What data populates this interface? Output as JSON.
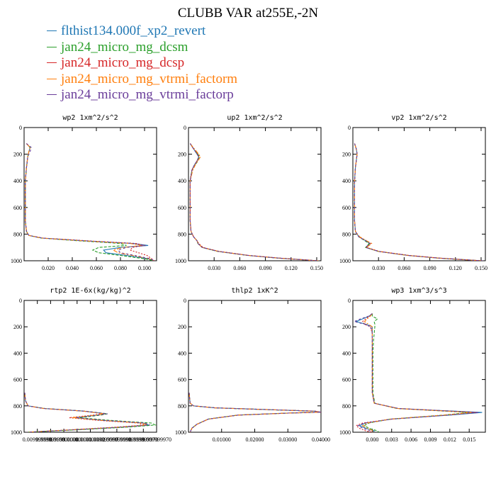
{
  "figure": {
    "title": "CLUBB VAR at255E,-2N",
    "legend": [
      {
        "label": "flthist134.000f_xp2_revert",
        "color": "#1f77b4"
      },
      {
        "label": "jan24_micro_mg_dcsm",
        "color": "#2ca02c"
      },
      {
        "label": "jan24_micro_mg_dcsp",
        "color": "#d62728"
      },
      {
        "label": "jan24_micro_mg_vtrmi_factorm",
        "color": "#ff7f0e"
      },
      {
        "label": "jan24_micro_mg_vtrmi_factorp",
        "color": "#6a3d9a"
      }
    ]
  },
  "chart_data": [
    {
      "type": "line",
      "title": "wp2  1xm^2/s^2",
      "ylim": [
        1000,
        0
      ],
      "yticks": [
        0,
        200,
        400,
        600,
        800,
        1000
      ],
      "xlim": [
        0,
        0.11
      ],
      "xticks": [
        0.02,
        0.04,
        0.06,
        0.08,
        0.1
      ],
      "xticklabels": [
        "0.020",
        "0.040",
        "0.060",
        "0.080",
        "0.100"
      ],
      "series_y": [
        120,
        150,
        180,
        220,
        300,
        400,
        500,
        600,
        700,
        780,
        810,
        830,
        850,
        870,
        885,
        900,
        920,
        940,
        960,
        985,
        1000
      ],
      "series": [
        {
          "name": "flthist134.000f_xp2_revert",
          "color": "#1f77b4",
          "values": [
            0.002,
            0.005,
            0.004,
            0.003,
            0.002,
            0.001,
            0.001,
            0.001,
            0.001,
            0.002,
            0.004,
            0.015,
            0.05,
            0.09,
            0.103,
            0.08,
            0.066,
            0.068,
            0.085,
            0.103,
            0.108
          ]
        },
        {
          "name": "jan24_micro_mg_dcsm",
          "color": "#2ca02c",
          "values": [
            0.002,
            0.005,
            0.004,
            0.003,
            0.002,
            0.001,
            0.001,
            0.001,
            0.001,
            0.002,
            0.004,
            0.014,
            0.045,
            0.08,
            0.085,
            0.062,
            0.057,
            0.062,
            0.08,
            0.1,
            0.108
          ]
        },
        {
          "name": "jan24_micro_mg_dcsp",
          "color": "#d62728",
          "values": [
            0.002,
            0.005,
            0.004,
            0.003,
            0.002,
            0.001,
            0.001,
            0.001,
            0.001,
            0.002,
            0.004,
            0.016,
            0.052,
            0.093,
            0.1,
            0.09,
            0.088,
            0.095,
            0.102,
            0.106,
            0.108
          ]
        },
        {
          "name": "jan24_micro_mg_vtrmi_factorm",
          "color": "#ff7f0e",
          "values": [
            0.002,
            0.005,
            0.004,
            0.003,
            0.002,
            0.001,
            0.001,
            0.001,
            0.001,
            0.002,
            0.004,
            0.015,
            0.049,
            0.088,
            0.098,
            0.082,
            0.074,
            0.078,
            0.09,
            0.104,
            0.108
          ]
        },
        {
          "name": "jan24_micro_mg_vtrmi_factorp",
          "color": "#6a3d9a",
          "values": [
            0.002,
            0.006,
            0.005,
            0.003,
            0.002,
            0.001,
            0.001,
            0.001,
            0.001,
            0.002,
            0.004,
            0.015,
            0.05,
            0.091,
            0.101,
            0.085,
            0.078,
            0.08,
            0.092,
            0.105,
            0.108
          ]
        }
      ]
    },
    {
      "type": "line",
      "title": "up2  1xm^2/s^2",
      "ylim": [
        1000,
        0
      ],
      "yticks": [
        0,
        200,
        400,
        600,
        800,
        1000
      ],
      "xlim": [
        0,
        0.155
      ],
      "xticks": [
        0.03,
        0.06,
        0.09,
        0.12,
        0.15
      ],
      "xticklabels": [
        "0.030",
        "0.060",
        "0.090",
        "0.120",
        "0.150"
      ],
      "series_y": [
        120,
        160,
        200,
        220,
        250,
        280,
        320,
        400,
        500,
        600,
        700,
        780,
        820,
        850,
        870,
        900,
        930,
        960,
        980,
        995,
        1000
      ],
      "series": [
        {
          "name": "flthist134.000f_xp2_revert",
          "color": "#1f77b4",
          "values": [
            0.002,
            0.006,
            0.01,
            0.012,
            0.01,
            0.007,
            0.004,
            0.002,
            0.002,
            0.002,
            0.002,
            0.003,
            0.006,
            0.01,
            0.011,
            0.016,
            0.035,
            0.07,
            0.105,
            0.14,
            0.152
          ]
        },
        {
          "name": "jan24_micro_mg_dcsm",
          "color": "#2ca02c",
          "values": [
            0.002,
            0.006,
            0.011,
            0.013,
            0.011,
            0.008,
            0.004,
            0.002,
            0.002,
            0.002,
            0.002,
            0.003,
            0.006,
            0.01,
            0.011,
            0.016,
            0.034,
            0.069,
            0.104,
            0.139,
            0.152
          ]
        },
        {
          "name": "jan24_micro_mg_dcsp",
          "color": "#d62728",
          "values": [
            0.002,
            0.006,
            0.011,
            0.012,
            0.01,
            0.007,
            0.004,
            0.002,
            0.002,
            0.002,
            0.002,
            0.003,
            0.006,
            0.01,
            0.012,
            0.017,
            0.036,
            0.071,
            0.106,
            0.141,
            0.152
          ]
        },
        {
          "name": "jan24_micro_mg_vtrmi_factorm",
          "color": "#ff7f0e",
          "values": [
            0.002,
            0.007,
            0.012,
            0.014,
            0.011,
            0.008,
            0.005,
            0.002,
            0.002,
            0.002,
            0.002,
            0.003,
            0.006,
            0.01,
            0.011,
            0.016,
            0.035,
            0.07,
            0.105,
            0.14,
            0.152
          ]
        },
        {
          "name": "jan24_micro_mg_vtrmi_factorp",
          "color": "#6a3d9a",
          "values": [
            0.002,
            0.006,
            0.01,
            0.012,
            0.01,
            0.007,
            0.004,
            0.002,
            0.002,
            0.002,
            0.002,
            0.003,
            0.006,
            0.01,
            0.011,
            0.016,
            0.035,
            0.07,
            0.105,
            0.14,
            0.152
          ]
        }
      ]
    },
    {
      "type": "line",
      "title": "vp2  1xm^2/s^2",
      "ylim": [
        1000,
        0
      ],
      "yticks": [
        0,
        200,
        400,
        600,
        800,
        1000
      ],
      "xlim": [
        0,
        0.155
      ],
      "xticks": [
        0.03,
        0.06,
        0.09,
        0.12,
        0.15
      ],
      "xticklabels": [
        "0.030",
        "0.060",
        "0.090",
        "0.120",
        "0.150"
      ],
      "series_y": [
        120,
        160,
        200,
        250,
        300,
        400,
        500,
        600,
        700,
        780,
        820,
        850,
        870,
        900,
        930,
        960,
        980,
        995,
        1000
      ],
      "series": [
        {
          "name": "flthist134.000f_xp2_revert",
          "color": "#1f77b4",
          "values": [
            0.002,
            0.004,
            0.005,
            0.004,
            0.003,
            0.002,
            0.002,
            0.002,
            0.002,
            0.003,
            0.007,
            0.015,
            0.02,
            0.015,
            0.03,
            0.065,
            0.1,
            0.138,
            0.152
          ]
        },
        {
          "name": "jan24_micro_mg_dcsm",
          "color": "#2ca02c",
          "values": [
            0.002,
            0.004,
            0.005,
            0.004,
            0.003,
            0.002,
            0.002,
            0.002,
            0.002,
            0.003,
            0.007,
            0.014,
            0.019,
            0.015,
            0.03,
            0.064,
            0.099,
            0.137,
            0.152
          ]
        },
        {
          "name": "jan24_micro_mg_dcsp",
          "color": "#d62728",
          "values": [
            0.002,
            0.004,
            0.005,
            0.004,
            0.003,
            0.002,
            0.002,
            0.002,
            0.002,
            0.003,
            0.007,
            0.016,
            0.021,
            0.016,
            0.031,
            0.066,
            0.101,
            0.139,
            0.152
          ]
        },
        {
          "name": "jan24_micro_mg_vtrmi_factorm",
          "color": "#ff7f0e",
          "values": [
            0.002,
            0.004,
            0.005,
            0.004,
            0.003,
            0.002,
            0.002,
            0.002,
            0.002,
            0.003,
            0.008,
            0.016,
            0.022,
            0.016,
            0.03,
            0.065,
            0.1,
            0.138,
            0.152
          ]
        },
        {
          "name": "jan24_micro_mg_vtrmi_factorp",
          "color": "#6a3d9a",
          "values": [
            0.002,
            0.004,
            0.005,
            0.004,
            0.003,
            0.002,
            0.002,
            0.002,
            0.002,
            0.003,
            0.007,
            0.015,
            0.02,
            0.015,
            0.03,
            0.065,
            0.1,
            0.138,
            0.152
          ]
        }
      ]
    },
    {
      "type": "line",
      "title": "rtp2  1E-6x(kg/kg)^2",
      "ylim": [
        1000,
        0
      ],
      "yticks": [
        0,
        200,
        400,
        600,
        800,
        1000
      ],
      "xlim": [
        0,
        10
      ],
      "xticks": [
        1,
        2,
        3,
        4,
        5,
        6,
        7,
        8,
        9,
        10
      ],
      "xticklabels": [
        "0.009999998",
        "0.009999999",
        "0.010000000",
        "0.010000001",
        "0.010000002",
        "0.009999997",
        "0.009999998",
        "0.009999999",
        "0.009999970",
        "0.009999970"
      ],
      "series_y": [
        700,
        760,
        800,
        820,
        840,
        860,
        870,
        890,
        910,
        930,
        945,
        960,
        980,
        1000
      ],
      "series": [
        {
          "name": "flthist134.000f_xp2_revert",
          "color": "#1f77b4",
          "values": [
            0.05,
            0.1,
            0.3,
            1.5,
            4.5,
            6.2,
            5.5,
            3.8,
            6.0,
            9.0,
            9.4,
            7.5,
            4.0,
            0.2
          ]
        },
        {
          "name": "jan24_micro_mg_dcsm",
          "color": "#2ca02c",
          "values": [
            0.05,
            0.1,
            0.3,
            1.6,
            4.6,
            6.3,
            5.8,
            4.2,
            6.5,
            9.6,
            9.9,
            8.0,
            4.3,
            0.2
          ]
        },
        {
          "name": "jan24_micro_mg_dcsp",
          "color": "#d62728",
          "values": [
            0.05,
            0.1,
            0.3,
            1.4,
            4.4,
            6.0,
            5.2,
            3.4,
            5.6,
            8.6,
            9.1,
            7.1,
            3.7,
            0.2
          ]
        },
        {
          "name": "jan24_micro_mg_vtrmi_factorm",
          "color": "#ff7f0e",
          "values": [
            0.05,
            0.1,
            0.3,
            1.5,
            4.5,
            6.1,
            5.4,
            3.6,
            5.9,
            8.9,
            9.3,
            7.4,
            3.9,
            0.2
          ]
        },
        {
          "name": "jan24_micro_mg_vtrmi_factorp",
          "color": "#6a3d9a",
          "values": [
            0.05,
            0.1,
            0.3,
            1.5,
            4.6,
            6.3,
            5.6,
            3.9,
            6.1,
            9.1,
            9.5,
            7.6,
            4.1,
            0.2
          ]
        }
      ]
    },
    {
      "type": "line",
      "title": "thlp2  1xK^2",
      "ylim": [
        1000,
        0
      ],
      "yticks": [
        0,
        200,
        400,
        600,
        800,
        1000
      ],
      "xlim": [
        0,
        0.04
      ],
      "xticks": [
        0.01,
        0.02,
        0.03,
        0.04
      ],
      "xticklabels": [
        "0.01000",
        "0.02000",
        "0.03000",
        "0.04000"
      ],
      "series_y": [
        700,
        780,
        800,
        815,
        830,
        840,
        848,
        855,
        870,
        900,
        940,
        970,
        1000
      ],
      "series": [
        {
          "name": "flthist134.000f_xp2_revert",
          "color": "#1f77b4",
          "values": [
            0.0002,
            0.0005,
            0.0015,
            0.008,
            0.026,
            0.038,
            0.04,
            0.03,
            0.015,
            0.006,
            0.0025,
            0.001,
            0.0005
          ]
        },
        {
          "name": "jan24_micro_mg_dcsm",
          "color": "#2ca02c",
          "values": [
            0.0002,
            0.0005,
            0.0015,
            0.0078,
            0.0255,
            0.0375,
            0.0398,
            0.0298,
            0.0148,
            0.006,
            0.0025,
            0.001,
            0.0005
          ]
        },
        {
          "name": "jan24_micro_mg_dcsp",
          "color": "#d62728",
          "values": [
            0.0002,
            0.0005,
            0.0016,
            0.0082,
            0.0262,
            0.0382,
            0.04,
            0.0302,
            0.0152,
            0.0061,
            0.0026,
            0.0011,
            0.0005
          ]
        },
        {
          "name": "jan24_micro_mg_vtrmi_factorm",
          "color": "#ff7f0e",
          "values": [
            0.0002,
            0.0005,
            0.0015,
            0.008,
            0.0258,
            0.0378,
            0.0399,
            0.03,
            0.015,
            0.006,
            0.0025,
            0.001,
            0.0005
          ]
        },
        {
          "name": "jan24_micro_mg_vtrmi_factorp",
          "color": "#6a3d9a",
          "values": [
            0.0002,
            0.0005,
            0.0015,
            0.008,
            0.026,
            0.038,
            0.04,
            0.03,
            0.015,
            0.006,
            0.0025,
            0.001,
            0.0005
          ]
        }
      ]
    },
    {
      "type": "line",
      "title": "wp3  1xm^3/s^3",
      "ylim": [
        1000,
        0
      ],
      "yticks": [
        0,
        200,
        400,
        600,
        800,
        1000
      ],
      "xlim": [
        -0.003,
        0.0175
      ],
      "xticks": [
        0.0,
        0.003,
        0.006,
        0.009,
        0.012,
        0.015
      ],
      "xticklabels": [
        "0.000",
        "0.003",
        "0.006",
        "0.009",
        "0.012",
        "0.015"
      ],
      "series_y": [
        100,
        120,
        140,
        160,
        180,
        200,
        250,
        300,
        400,
        500,
        600,
        700,
        780,
        820,
        850,
        870,
        900,
        930,
        950,
        970,
        990,
        1000
      ],
      "series": [
        {
          "name": "flthist134.000f_xp2_revert",
          "color": "#1f77b4",
          "values": [
            0.0,
            -0.0005,
            -0.0015,
            -0.0025,
            -0.001,
            0.0,
            0.0,
            0.0,
            0.0,
            0.0,
            0.0,
            0.0,
            0.0003,
            0.004,
            0.017,
            0.012,
            0.003,
            -0.001,
            -0.002,
            -0.001,
            0.0003,
            0.0
          ]
        },
        {
          "name": "jan24_micro_mg_dcsm",
          "color": "#2ca02c",
          "values": [
            0.0,
            0.0,
            0.0008,
            0.0003,
            0.0004,
            0.0004,
            0.0003,
            0.0002,
            0.0001,
            0.0001,
            0.0001,
            0.0001,
            0.0004,
            0.0038,
            0.015,
            0.011,
            0.0028,
            -0.0005,
            -0.0012,
            -0.0005,
            0.0008,
            0.001
          ]
        },
        {
          "name": "jan24_micro_mg_dcsp",
          "color": "#d62728",
          "values": [
            0.0,
            -0.0004,
            -0.001,
            -0.0015,
            -0.0012,
            -0.0003,
            0.0,
            0.0,
            0.0,
            0.0,
            0.0,
            0.0,
            0.0003,
            0.004,
            0.016,
            0.0115,
            0.003,
            -0.0015,
            -0.0025,
            -0.002,
            -0.001,
            0.0
          ]
        },
        {
          "name": "jan24_micro_mg_vtrmi_factorm",
          "color": "#ff7f0e",
          "values": [
            0.0,
            -0.0003,
            -0.0008,
            -0.0012,
            -0.0006,
            0.0,
            0.0,
            0.0,
            0.0,
            0.0,
            0.0,
            0.0,
            0.0003,
            0.0039,
            0.0155,
            0.0112,
            0.0029,
            -0.0008,
            -0.0015,
            -0.0008,
            0.0002,
            0.0
          ]
        },
        {
          "name": "jan24_micro_mg_vtrmi_factorp",
          "color": "#6a3d9a",
          "values": [
            0.0,
            -0.0006,
            -0.0018,
            -0.0028,
            -0.0012,
            -0.0002,
            0.0,
            0.0,
            0.0,
            0.0,
            0.0,
            0.0,
            0.0003,
            0.0041,
            0.0165,
            0.0118,
            0.0031,
            -0.0012,
            -0.0022,
            -0.0015,
            -0.0003,
            0.0
          ]
        }
      ]
    }
  ]
}
